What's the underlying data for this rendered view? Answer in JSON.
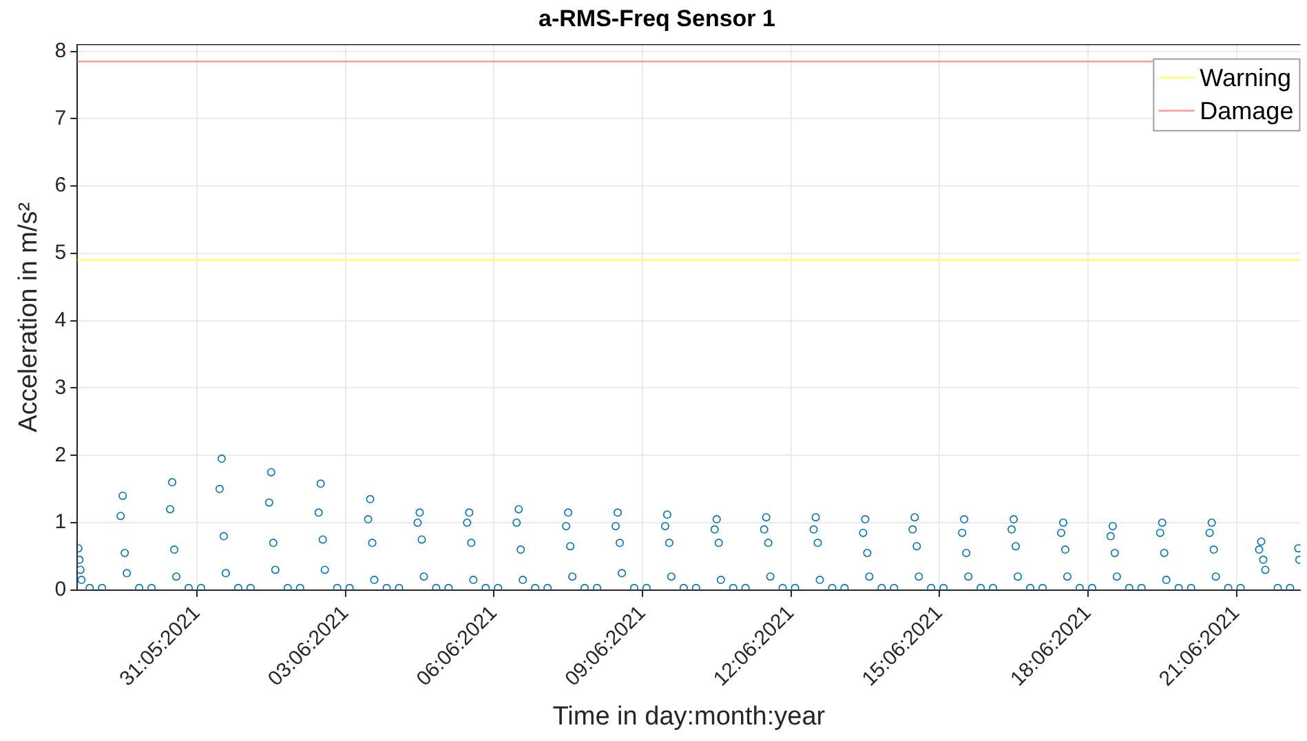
{
  "chart_data": {
    "type": "scatter",
    "title": "a-RMS-Freq Sensor 1",
    "xlabel": "Time in day:month:year",
    "ylabel": "Acceleration in m/s²",
    "color": "#0072bd",
    "marker": "circle",
    "grid": true,
    "legend": "top right",
    "xlim": [
      "2021-05-28T14:00",
      "2021-06-22T07:00"
    ],
    "xticks": [
      {
        "value": "2021-05-31",
        "label": "31:05:2021"
      },
      {
        "value": "2021-06-03",
        "label": "03:06:2021"
      },
      {
        "value": "2021-06-06",
        "label": "06:06:2021"
      },
      {
        "value": "2021-06-09",
        "label": "09:06:2021"
      },
      {
        "value": "2021-06-12",
        "label": "12:06:2021"
      },
      {
        "value": "2021-06-15",
        "label": "15:06:2021"
      },
      {
        "value": "2021-06-18",
        "label": "18:06:2021"
      },
      {
        "value": "2021-06-21",
        "label": "21:06:2021"
      }
    ],
    "ylim": [
      0,
      8.1
    ],
    "yticks": [
      0,
      1,
      2,
      3,
      4,
      5,
      6,
      7,
      8
    ],
    "ref_lines": [
      {
        "axis": "y",
        "value": 4.9,
        "label": "Warning",
        "color": "#ffff66"
      },
      {
        "axis": "y",
        "value": 7.85,
        "label": "Damage",
        "color": "#ff9999"
      }
    ],
    "x": [
      "2021-05-28T14:30",
      "2021-05-28T15:00",
      "2021-05-28T15:30",
      "2021-05-28T16:00",
      "2021-05-28T20:00",
      "2021-05-29T02:00",
      "2021-05-29T11:00",
      "2021-05-29T12:00",
      "2021-05-29T13:00",
      "2021-05-29T14:00",
      "2021-05-29T20:00",
      "2021-05-30T02:00",
      "2021-05-30T11:00",
      "2021-05-30T12:00",
      "2021-05-30T13:00",
      "2021-05-30T14:00",
      "2021-05-30T20:00",
      "2021-05-31T02:00",
      "2021-05-31T11:00",
      "2021-05-31T12:00",
      "2021-05-31T13:00",
      "2021-05-31T14:00",
      "2021-05-31T20:00",
      "2021-06-01T02:00",
      "2021-06-01T11:00",
      "2021-06-01T12:00",
      "2021-06-01T13:00",
      "2021-06-01T14:00",
      "2021-06-01T20:00",
      "2021-06-02T02:00",
      "2021-06-02T11:00",
      "2021-06-02T12:00",
      "2021-06-02T13:00",
      "2021-06-02T14:00",
      "2021-06-02T20:00",
      "2021-06-03T02:00",
      "2021-06-03T11:00",
      "2021-06-03T12:00",
      "2021-06-03T13:00",
      "2021-06-03T14:00",
      "2021-06-03T20:00",
      "2021-06-04T02:00",
      "2021-06-04T11:00",
      "2021-06-04T12:00",
      "2021-06-04T13:00",
      "2021-06-04T14:00",
      "2021-06-04T20:00",
      "2021-06-05T02:00",
      "2021-06-05T11:00",
      "2021-06-05T12:00",
      "2021-06-05T13:00",
      "2021-06-05T14:00",
      "2021-06-05T20:00",
      "2021-06-06T02:00",
      "2021-06-06T11:00",
      "2021-06-06T12:00",
      "2021-06-06T13:00",
      "2021-06-06T14:00",
      "2021-06-06T20:00",
      "2021-06-07T02:00",
      "2021-06-07T11:00",
      "2021-06-07T12:00",
      "2021-06-07T13:00",
      "2021-06-07T14:00",
      "2021-06-07T20:00",
      "2021-06-08T02:00",
      "2021-06-08T11:00",
      "2021-06-08T12:00",
      "2021-06-08T13:00",
      "2021-06-08T14:00",
      "2021-06-08T20:00",
      "2021-06-09T02:00",
      "2021-06-09T11:00",
      "2021-06-09T12:00",
      "2021-06-09T13:00",
      "2021-06-09T14:00",
      "2021-06-09T20:00",
      "2021-06-10T02:00",
      "2021-06-10T11:00",
      "2021-06-10T12:00",
      "2021-06-10T13:00",
      "2021-06-10T14:00",
      "2021-06-10T20:00",
      "2021-06-11T02:00",
      "2021-06-11T11:00",
      "2021-06-11T12:00",
      "2021-06-11T13:00",
      "2021-06-11T14:00",
      "2021-06-11T20:00",
      "2021-06-12T02:00",
      "2021-06-12T11:00",
      "2021-06-12T12:00",
      "2021-06-12T13:00",
      "2021-06-12T14:00",
      "2021-06-12T20:00",
      "2021-06-13T02:00",
      "2021-06-13T11:00",
      "2021-06-13T12:00",
      "2021-06-13T13:00",
      "2021-06-13T14:00",
      "2021-06-13T20:00",
      "2021-06-14T02:00",
      "2021-06-14T11:00",
      "2021-06-14T12:00",
      "2021-06-14T13:00",
      "2021-06-14T14:00",
      "2021-06-14T20:00",
      "2021-06-15T02:00",
      "2021-06-15T11:00",
      "2021-06-15T12:00",
      "2021-06-15T13:00",
      "2021-06-15T14:00",
      "2021-06-15T20:00",
      "2021-06-16T02:00",
      "2021-06-16T11:00",
      "2021-06-16T12:00",
      "2021-06-16T13:00",
      "2021-06-16T14:00",
      "2021-06-16T20:00",
      "2021-06-17T02:00",
      "2021-06-17T11:00",
      "2021-06-17T12:00",
      "2021-06-17T13:00",
      "2021-06-17T14:00",
      "2021-06-17T20:00",
      "2021-06-18T02:00",
      "2021-06-18T11:00",
      "2021-06-18T12:00",
      "2021-06-18T13:00",
      "2021-06-18T14:00",
      "2021-06-18T20:00",
      "2021-06-19T02:00",
      "2021-06-19T11:00",
      "2021-06-19T12:00",
      "2021-06-19T13:00",
      "2021-06-19T14:00",
      "2021-06-19T20:00",
      "2021-06-20T02:00",
      "2021-06-20T11:00",
      "2021-06-20T12:00",
      "2021-06-20T13:00",
      "2021-06-20T14:00",
      "2021-06-20T20:00",
      "2021-06-21T02:00",
      "2021-06-21T11:00",
      "2021-06-21T12:00",
      "2021-06-21T13:00",
      "2021-06-21T14:00",
      "2021-06-21T20:00",
      "2021-06-22T02:00",
      "2021-06-22T06:00",
      "2021-06-22T06:30"
    ],
    "values": [
      0.62,
      0.45,
      0.3,
      0.15,
      0.03,
      0.03,
      1.1,
      1.4,
      0.55,
      0.25,
      0.03,
      0.03,
      1.2,
      1.6,
      0.6,
      0.2,
      0.03,
      0.03,
      1.5,
      1.95,
      0.8,
      0.25,
      0.03,
      0.03,
      1.3,
      1.75,
      0.7,
      0.3,
      0.03,
      0.03,
      1.15,
      1.58,
      0.75,
      0.3,
      0.03,
      0.03,
      1.05,
      1.35,
      0.7,
      0.15,
      0.03,
      0.03,
      1.0,
      1.15,
      0.75,
      0.2,
      0.03,
      0.03,
      1.0,
      1.15,
      0.7,
      0.15,
      0.03,
      0.03,
      1.0,
      1.2,
      0.6,
      0.15,
      0.03,
      0.03,
      0.95,
      1.15,
      0.65,
      0.2,
      0.03,
      0.03,
      0.95,
      1.15,
      0.7,
      0.25,
      0.03,
      0.03,
      0.95,
      1.12,
      0.7,
      0.2,
      0.03,
      0.03,
      0.9,
      1.05,
      0.7,
      0.15,
      0.03,
      0.03,
      0.9,
      1.08,
      0.7,
      0.2,
      0.03,
      0.03,
      0.9,
      1.08,
      0.7,
      0.15,
      0.03,
      0.03,
      0.85,
      1.05,
      0.55,
      0.2,
      0.03,
      0.03,
      0.9,
      1.08,
      0.65,
      0.2,
      0.03,
      0.03,
      0.85,
      1.05,
      0.55,
      0.2,
      0.03,
      0.03,
      0.9,
      1.05,
      0.65,
      0.2,
      0.03,
      0.03,
      0.85,
      1.0,
      0.6,
      0.2,
      0.03,
      0.03,
      0.8,
      0.95,
      0.55,
      0.2,
      0.03,
      0.03,
      0.85,
      1.0,
      0.55,
      0.15,
      0.03,
      0.03,
      0.85,
      1.0,
      0.6,
      0.2,
      0.03,
      0.03,
      0.6,
      0.72,
      0.45,
      0.3,
      0.03,
      0.03,
      0.62,
      0.45
    ]
  }
}
